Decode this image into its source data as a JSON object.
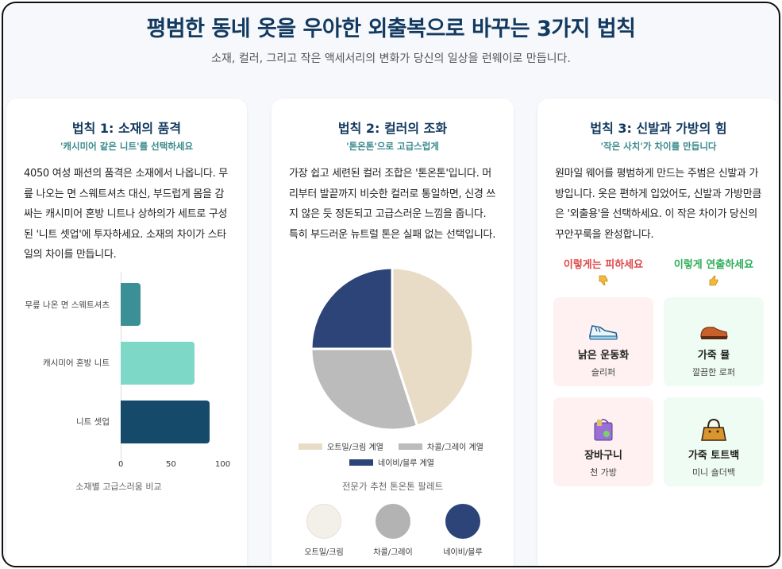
{
  "header": {
    "title": "평범한 동네 옷을 우아한 외출복으로 바꾸는 3가지 법칙",
    "subtitle": "소재, 컬러, 그리고 작은 액세서리의 변화가 당신의 일상을 런웨이로 만듭니다."
  },
  "card1": {
    "title": "법칙 1: 소재의 품격",
    "subtitle": "'캐시미어 같은 니트'를 선택하세요",
    "body": "4050 여성 패션의 품격은 소재에서 나옵니다. 무릎 나오는 면 스웨트셔츠 대신, 부드럽게 몸을 감싸는 캐시미어 혼방 니트나 상하의가 세트로 구성된 '니트 셋업'에 투자하세요. 소재의 차이가 스타일의 차이를 만듭니다.",
    "chart_data": {
      "type": "bar",
      "orientation": "horizontal",
      "categories": [
        "무릎 나온 면 스웨트셔츠",
        "캐시미어 혼방 니트",
        "니트 셋업"
      ],
      "values": [
        20,
        75,
        90
      ],
      "colors": [
        "#3b8f96",
        "#7dd8c8",
        "#154a6b"
      ],
      "ticks": [
        "0",
        "50",
        "100"
      ],
      "xlim": [
        0,
        100
      ],
      "caption": "소재별 고급스러움 비교"
    }
  },
  "card2": {
    "title": "법칙 2: 컬러의 조화",
    "subtitle": "'톤온톤'으로 고급스럽게",
    "body": "가장 쉽고 세련된 컬러 조합은 '톤온톤'입니다. 머리부터 발끝까지 비슷한 컬러로 통일하면, 신경 쓰지 않은 듯 정돈되고 고급스러운 느낌을 줍니다. 특히 부드러운 뉴트럴 톤은 실패 없는 선택입니다.",
    "chart_data": {
      "type": "pie",
      "series": [
        {
          "name": "오트밀/크림 계열",
          "value": 45,
          "color": "#e9dcc7"
        },
        {
          "name": "차콜/그레이 계열",
          "value": 30,
          "color": "#bbbbbb"
        },
        {
          "name": "네이비/블루 계열",
          "value": 25,
          "color": "#2c4478"
        }
      ],
      "legend": "bottom"
    },
    "palette_title": "전문가 추천 톤온톤 팔레트",
    "palette": [
      {
        "label": "오트밀/크림",
        "color": "#f3f0ea"
      },
      {
        "label": "차콜/그레이",
        "color": "#b3b3b3"
      },
      {
        "label": "네이비/블루",
        "color": "#2c4478"
      }
    ]
  },
  "card3": {
    "title": "법칙 3: 신발과 가방의 힘",
    "subtitle": "'작은 사치'가 차이를 만듭니다",
    "body": "원마일 웨어를 평범하게 만드는 주범은 신발과 가방입니다. 옷은 편하게 입었어도, 신발과 가방만큼은 '외출용'을 선택하세요. 이 작은 차이가 당신의 꾸안꾸룩을 완성합니다.",
    "avoid_heading": "이렇게는 피하세요",
    "avoid_color": "#e04848",
    "avoid_icon": "thumbs-down-icon",
    "prefer_heading": "이렇게 연출하세요",
    "prefer_color": "#2fae5a",
    "prefer_icon": "thumbs-up-icon",
    "avoid": [
      {
        "name": "낡은 운동화",
        "sub": "슬리퍼",
        "icon": "sneaker-icon"
      },
      {
        "name": "장바구니",
        "sub": "천 가방",
        "icon": "shopping-bag-icon"
      }
    ],
    "prefer": [
      {
        "name": "가죽 뮬",
        "sub": "깔끔한 로퍼",
        "icon": "loafer-icon"
      },
      {
        "name": "가죽 토트백",
        "sub": "미니 숄더백",
        "icon": "handbag-icon"
      }
    ]
  }
}
